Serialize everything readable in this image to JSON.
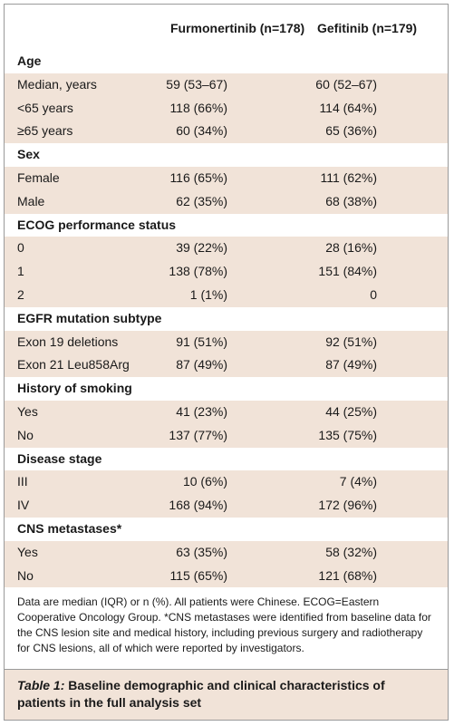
{
  "header": {
    "col1": "Furmonertinib (n=178)",
    "col2": "Gefitinib (n=179)"
  },
  "rows": [
    {
      "type": "section",
      "label": "Age"
    },
    {
      "type": "data",
      "label": "Median, years",
      "c1": "59 (53–67)",
      "c2": "60 (52–67)"
    },
    {
      "type": "data",
      "label": "<65 years",
      "c1": "118 (66%)",
      "c2": "114 (64%)"
    },
    {
      "type": "data",
      "label": "≥65 years",
      "c1": "60 (34%)",
      "c2": "65 (36%)"
    },
    {
      "type": "section",
      "label": "Sex"
    },
    {
      "type": "data",
      "label": "Female",
      "c1": "116 (65%)",
      "c2": "111 (62%)"
    },
    {
      "type": "data",
      "label": "Male",
      "c1": "62 (35%)",
      "c2": "68 (38%)"
    },
    {
      "type": "section",
      "label": "ECOG performance status"
    },
    {
      "type": "data",
      "label": "0",
      "c1": "39 (22%)",
      "c2": "28 (16%)"
    },
    {
      "type": "data",
      "label": "1",
      "c1": "138 (78%)",
      "c2": "151 (84%)"
    },
    {
      "type": "data",
      "label": "2",
      "c1": "1 (1%)",
      "c2": "0"
    },
    {
      "type": "section",
      "label": "EGFR mutation subtype"
    },
    {
      "type": "data",
      "label": "Exon 19 deletions",
      "c1": "91 (51%)",
      "c2": "92 (51%)"
    },
    {
      "type": "data",
      "label": "Exon 21 Leu858Arg",
      "c1": "87 (49%)",
      "c2": "87 (49%)"
    },
    {
      "type": "section",
      "label": "History of smoking"
    },
    {
      "type": "data",
      "label": "Yes",
      "c1": "41 (23%)",
      "c2": "44 (25%)"
    },
    {
      "type": "data",
      "label": "No",
      "c1": "137 (77%)",
      "c2": "135 (75%)"
    },
    {
      "type": "section",
      "label": "Disease stage"
    },
    {
      "type": "data",
      "label": "III",
      "c1": "10 (6%)",
      "c2": "7 (4%)"
    },
    {
      "type": "data",
      "label": "IV",
      "c1": "168 (94%)",
      "c2": "172 (96%)"
    },
    {
      "type": "section",
      "label": "CNS metastases*"
    },
    {
      "type": "data",
      "label": "Yes",
      "c1": "63 (35%)",
      "c2": "58 (32%)"
    },
    {
      "type": "data",
      "label": "No",
      "c1": "115 (65%)",
      "c2": "121 (68%)"
    }
  ],
  "footnote": "Data are median (IQR) or n (%). All patients were Chinese. ECOG=Eastern Cooperative Oncology Group. *CNS metastases were identified from baseline data for the CNS lesion site and medical history, including previous surgery and radiotherapy for CNS lesions, all of which were reported by investigators.",
  "caption": {
    "number": "Table 1:",
    "text": " Baseline demographic and clinical characteristics of patients in the full analysis set"
  }
}
